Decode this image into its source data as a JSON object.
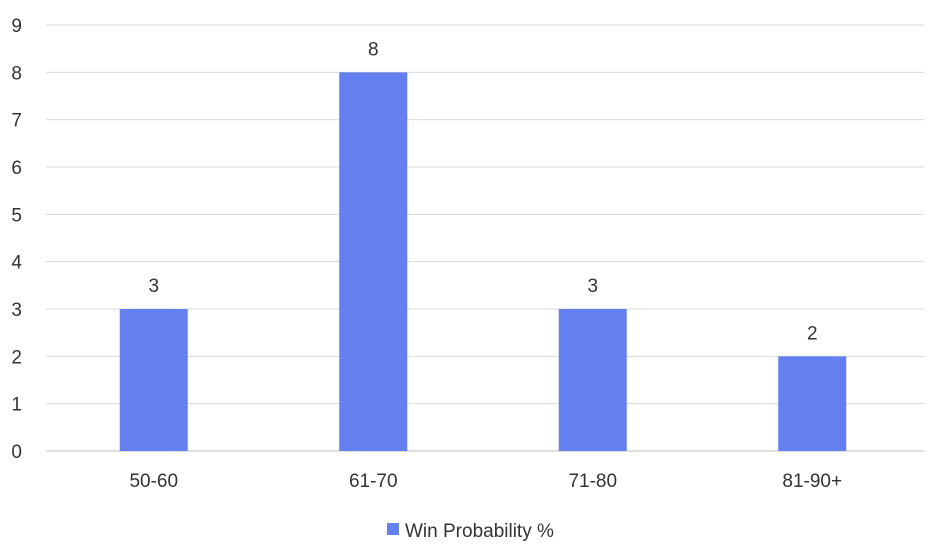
{
  "chart_data": {
    "type": "bar",
    "categories": [
      "50-60",
      "61-70",
      "71-80",
      "81-90+"
    ],
    "series": [
      {
        "name": "Win Probability %",
        "values": [
          3,
          8,
          3,
          2
        ],
        "color": "#6480f0"
      }
    ],
    "title": "",
    "xlabel": "",
    "ylabel": "",
    "ylim": [
      0,
      9
    ],
    "yticks": [
      0,
      1,
      2,
      3,
      4,
      5,
      6,
      7,
      8,
      9
    ],
    "grid": true,
    "legend_position": "bottom",
    "data_labels": true
  },
  "colors": {
    "bar": "#6480f0",
    "grid": "#d9d9d9",
    "text": "#333333"
  }
}
